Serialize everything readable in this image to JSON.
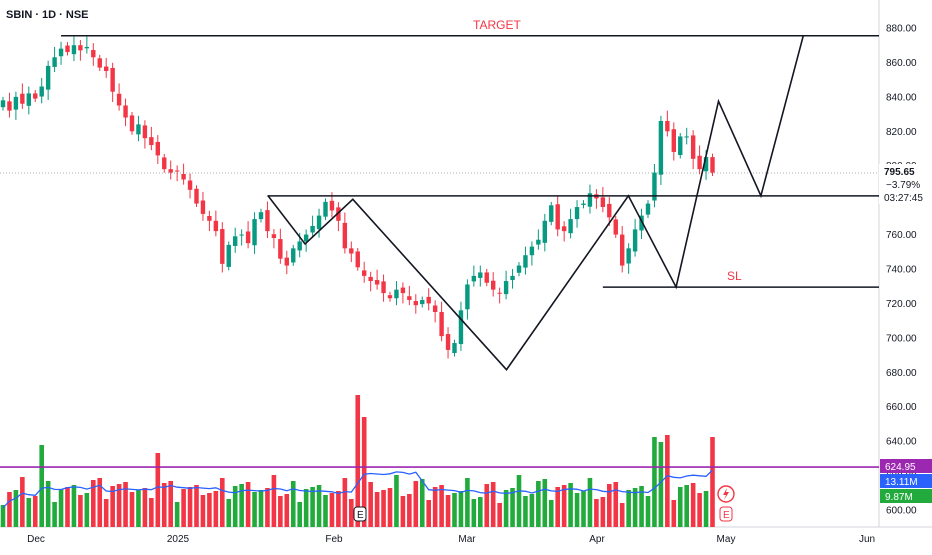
{
  "symbol_title": "SBIN · 1D · NSE",
  "colors": {
    "up": "#089981",
    "down": "#f23645",
    "vol_up": "#22ab3c",
    "vol_down": "#f23645",
    "ma": "#2962ff",
    "line_purple": "#9c27b0",
    "annotation": "#f23645",
    "grid_border": "#d1d4dc"
  },
  "annotations": {
    "target_label": "TARGET",
    "sl_label": "SL"
  },
  "price_badge": {
    "price": "795.65",
    "change": "−3.79%",
    "countdown": "03:27:45"
  },
  "volume_badges": {
    "level": "624.95",
    "ma_volume": "13.11M",
    "volume": "9.87M"
  },
  "event_markers": [
    "E",
    "E"
  ],
  "chart_data": {
    "type": "candlestick",
    "title": "SBIN · 1D · NSE",
    "y_axis": {
      "ticks": [
        "880.00",
        "860.00",
        "840.00",
        "820.00",
        "800.00",
        "780.00",
        "760.00",
        "740.00",
        "720.00",
        "700.00",
        "680.00",
        "660.00",
        "640.00",
        "620.00",
        "600.00"
      ],
      "range": [
        596,
        891
      ]
    },
    "x_axis": {
      "ticks": [
        "Dec",
        "2025",
        "Feb",
        "Mar",
        "Apr",
        "May",
        "Jun"
      ]
    },
    "closes": [
      838,
      832,
      840,
      836,
      842,
      839,
      846,
      858,
      863,
      868,
      866,
      870,
      867,
      869,
      863,
      857,
      855,
      843,
      835,
      828,
      820,
      824,
      816,
      812,
      806,
      798,
      796,
      797,
      792,
      786,
      778,
      772,
      768,
      762,
      743,
      754,
      759,
      760,
      755,
      769,
      773,
      762,
      758,
      746,
      742,
      752,
      756,
      760,
      765,
      771,
      779,
      774,
      768,
      752,
      749,
      741,
      736,
      733,
      731,
      726,
      723,
      728,
      726,
      722,
      719,
      722,
      720,
      715,
      701,
      693,
      697,
      716,
      731,
      736,
      738,
      732,
      728,
      726,
      733,
      736,
      742,
      748,
      753,
      757,
      768,
      777,
      763,
      762,
      769,
      776,
      778,
      784,
      781,
      776,
      770,
      760,
      742,
      752,
      763,
      771,
      778,
      796,
      826,
      820,
      808,
      817,
      817,
      804,
      798,
      805,
      796
    ],
    "annotation_levels": {
      "target": 875.5,
      "neckline": 782.5,
      "stop_loss": 729.5
    },
    "pattern_points": [
      [
        47,
        782.5
      ],
      [
        54,
        754.5
      ],
      [
        63,
        780.5
      ],
      [
        92,
        681.5
      ],
      [
        115,
        782.5
      ],
      [
        124,
        729.5
      ],
      [
        132,
        837.5
      ],
      [
        140,
        782.5
      ],
      [
        148,
        875.5
      ]
    ],
    "volume_level": 624.95
  }
}
